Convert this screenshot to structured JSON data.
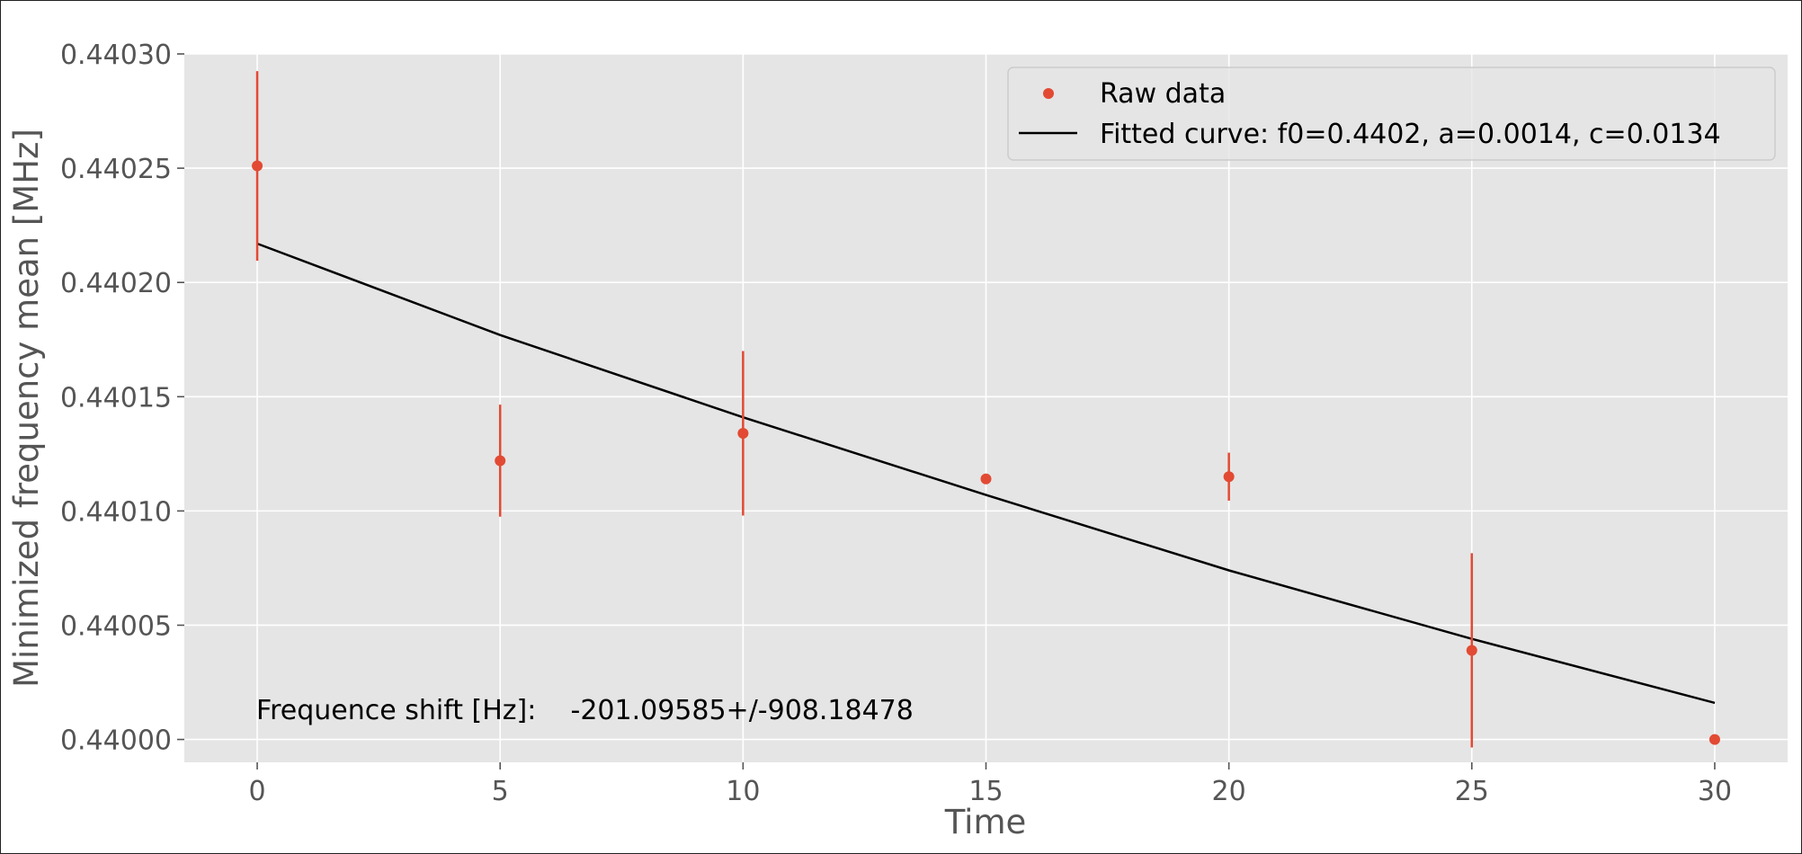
{
  "chart_data": {
    "type": "scatter",
    "title": "",
    "xlabel": "Time",
    "ylabel": "Minimized frequency mean [MHz]",
    "xlim": [
      -1.5,
      31.5
    ],
    "ylim": [
      0.43999,
      0.4403
    ],
    "xticks": [
      0,
      5,
      10,
      15,
      20,
      25,
      30
    ],
    "xtick_labels": [
      "0",
      "5",
      "10",
      "15",
      "20",
      "25",
      "30"
    ],
    "yticks": [
      0.44,
      0.44005,
      0.4401,
      0.44015,
      0.4402,
      0.44025,
      0.4403
    ],
    "ytick_labels": [
      "0.44000",
      "0.44005",
      "0.44010",
      "0.44015",
      "0.44020",
      "0.44025",
      "0.44030"
    ],
    "grid": true,
    "legend_position": "top-right",
    "series": [
      {
        "name": "Raw data",
        "kind": "points-with-error-bars",
        "color": "#E24A33",
        "x": [
          0,
          5,
          10,
          15,
          20,
          25,
          30
        ],
        "y": [
          0.440251,
          0.440122,
          0.440134,
          0.440114,
          0.440115,
          0.440039,
          0.44
        ],
        "err": [
          4.15e-05,
          2.45e-05,
          3.6e-05,
          0.0,
          1.05e-05,
          4.25e-05,
          0.0
        ]
      },
      {
        "name": "Fitted curve: f0=0.4402, a=0.0014, c=0.0134",
        "kind": "line",
        "color": "#000000",
        "x": [
          0,
          5,
          10,
          15,
          20,
          25,
          30
        ],
        "y": [
          0.440217,
          0.440177,
          0.440141,
          0.440107,
          0.440074,
          0.440044,
          0.440016
        ]
      }
    ],
    "annotation": "Frequence shift [Hz]:    -201.09585+/-908.18478",
    "colors": {
      "plot_background": "#E5E5E5",
      "grid": "#FFFFFF",
      "raw_data": "#E24A33",
      "fitted_curve": "#000000"
    }
  }
}
